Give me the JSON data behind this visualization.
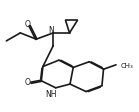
{
  "bg_color": "#ffffff",
  "bond_color": "#1a1a1a",
  "lw": 1.2,
  "fig_width": 1.39,
  "fig_height": 1.13,
  "dpi": 100,
  "xlim": [
    0,
    10
  ],
  "ylim": [
    0,
    8.5
  ]
}
